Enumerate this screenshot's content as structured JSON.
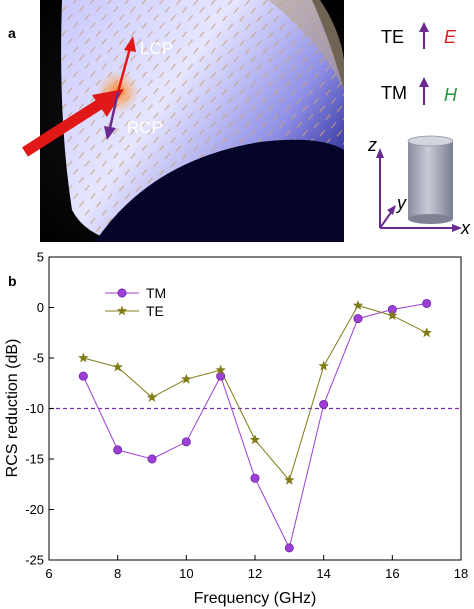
{
  "panel_a": {
    "label": "a",
    "lcp_label": "LCP",
    "rcp_label": "RCP",
    "legend_te_label": "TE",
    "legend_te_field": "E",
    "legend_tm_label": "TM",
    "legend_tm_field": "H",
    "axis_z": "z",
    "axis_y": "y",
    "axis_x": "x",
    "colors": {
      "te_field": "#d42020",
      "tm_field": "#1a9a3a",
      "arrow_purple": "#6a2a90",
      "arrow_red": "#e01818"
    },
    "icons": [
      "incident-wave-arrow-icon",
      "lcp-arrow-icon",
      "rcp-arrow-icon",
      "cylinder-icon",
      "coordinate-axes-icon"
    ]
  },
  "panel_b": {
    "label": "b"
  },
  "chart_data": {
    "type": "line",
    "title": "",
    "xlabel": "Frequency (GHz)",
    "ylabel": "RCS reduction (dB)",
    "xlim": [
      6,
      18
    ],
    "ylim": [
      -25,
      5
    ],
    "xticks": [
      "6",
      "8",
      "10",
      "12",
      "14",
      "16",
      "18"
    ],
    "yticks": [
      "5",
      "0",
      "-5",
      "-10",
      "-15",
      "-20",
      "-25"
    ],
    "grid": false,
    "legend_position": "top-left",
    "reference_line": {
      "y": -10,
      "style": "dashed",
      "color": "#7a2fb0"
    },
    "x": [
      7,
      8,
      9,
      10,
      11,
      12,
      13,
      14,
      15,
      16,
      17
    ],
    "series": [
      {
        "name": "TM",
        "marker": "circle",
        "color": "#9b3fd6",
        "values": [
          -6.8,
          -14.1,
          -15.0,
          -13.3,
          -6.8,
          -16.9,
          -23.8,
          -9.6,
          -1.1,
          -0.2,
          0.4
        ]
      },
      {
        "name": "TE",
        "marker": "star",
        "color": "#807d18",
        "values": [
          -5.0,
          -5.9,
          -8.9,
          -7.1,
          -6.2,
          -13.1,
          -17.1,
          -5.8,
          0.2,
          -0.8,
          -2.5
        ]
      }
    ]
  }
}
